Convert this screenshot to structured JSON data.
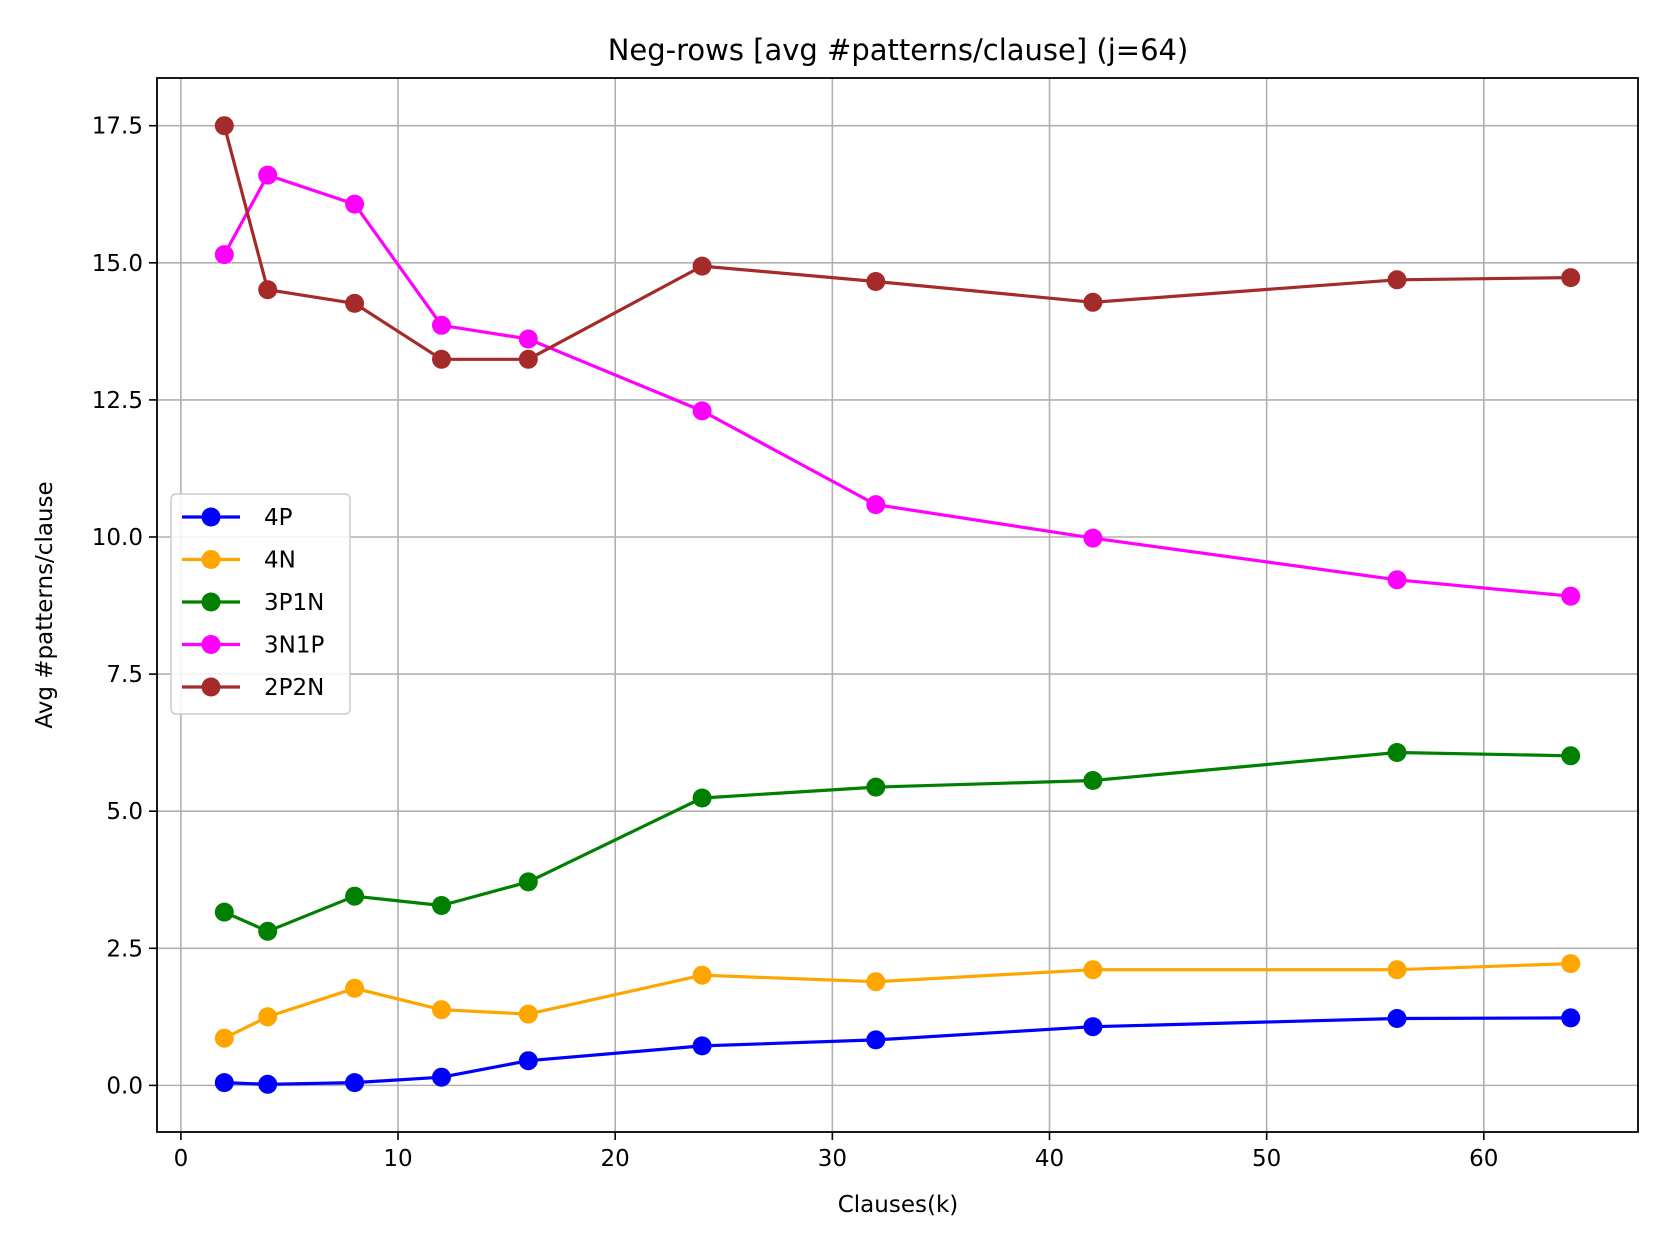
{
  "chart_data": {
    "type": "line",
    "title": "Neg-rows [avg #patterns/clause] (j=64)",
    "xlabel": "Clauses(k)",
    "ylabel": "Avg #patterns/clause",
    "xlim": [
      -1.1,
      67.1
    ],
    "ylim": [
      -0.85,
      18.37
    ],
    "xticks": [
      0,
      10,
      20,
      30,
      40,
      50,
      60
    ],
    "xtick_labels": [
      "0",
      "10",
      "20",
      "30",
      "40",
      "50",
      "60"
    ],
    "yticks": [
      0,
      2.5,
      5,
      7.5,
      10,
      12.5,
      15,
      17.5
    ],
    "ytick_labels": [
      "0.0",
      "2.5",
      "5.0",
      "7.5",
      "10.0",
      "12.5",
      "15.0",
      "17.5"
    ],
    "grid": true,
    "legend_position": "center-left",
    "x": [
      2,
      4,
      8,
      12,
      16,
      24,
      32,
      42,
      56,
      64
    ],
    "series": [
      {
        "name": "4P",
        "color": "#0000ff",
        "values": [
          0.05,
          0.02,
          0.05,
          0.15,
          0.45,
          0.72,
          0.83,
          1.07,
          1.22,
          1.23
        ]
      },
      {
        "name": "4N",
        "color": "#ffa500",
        "values": [
          0.86,
          1.25,
          1.77,
          1.38,
          1.3,
          2.01,
          1.89,
          2.11,
          2.11,
          2.22
        ]
      },
      {
        "name": "3P1N",
        "color": "#008000",
        "values": [
          3.16,
          2.81,
          3.45,
          3.28,
          3.71,
          5.24,
          5.44,
          5.56,
          6.07,
          6.01
        ]
      },
      {
        "name": "3N1P",
        "color": "#ff00ff",
        "values": [
          15.15,
          16.6,
          16.07,
          13.86,
          13.61,
          12.3,
          10.59,
          9.98,
          9.22,
          8.92
        ]
      },
      {
        "name": "2P2N",
        "color": "#a52a2a",
        "values": [
          17.5,
          14.51,
          14.26,
          13.24,
          13.24,
          14.94,
          14.66,
          14.28,
          14.69,
          14.73
        ]
      }
    ]
  }
}
